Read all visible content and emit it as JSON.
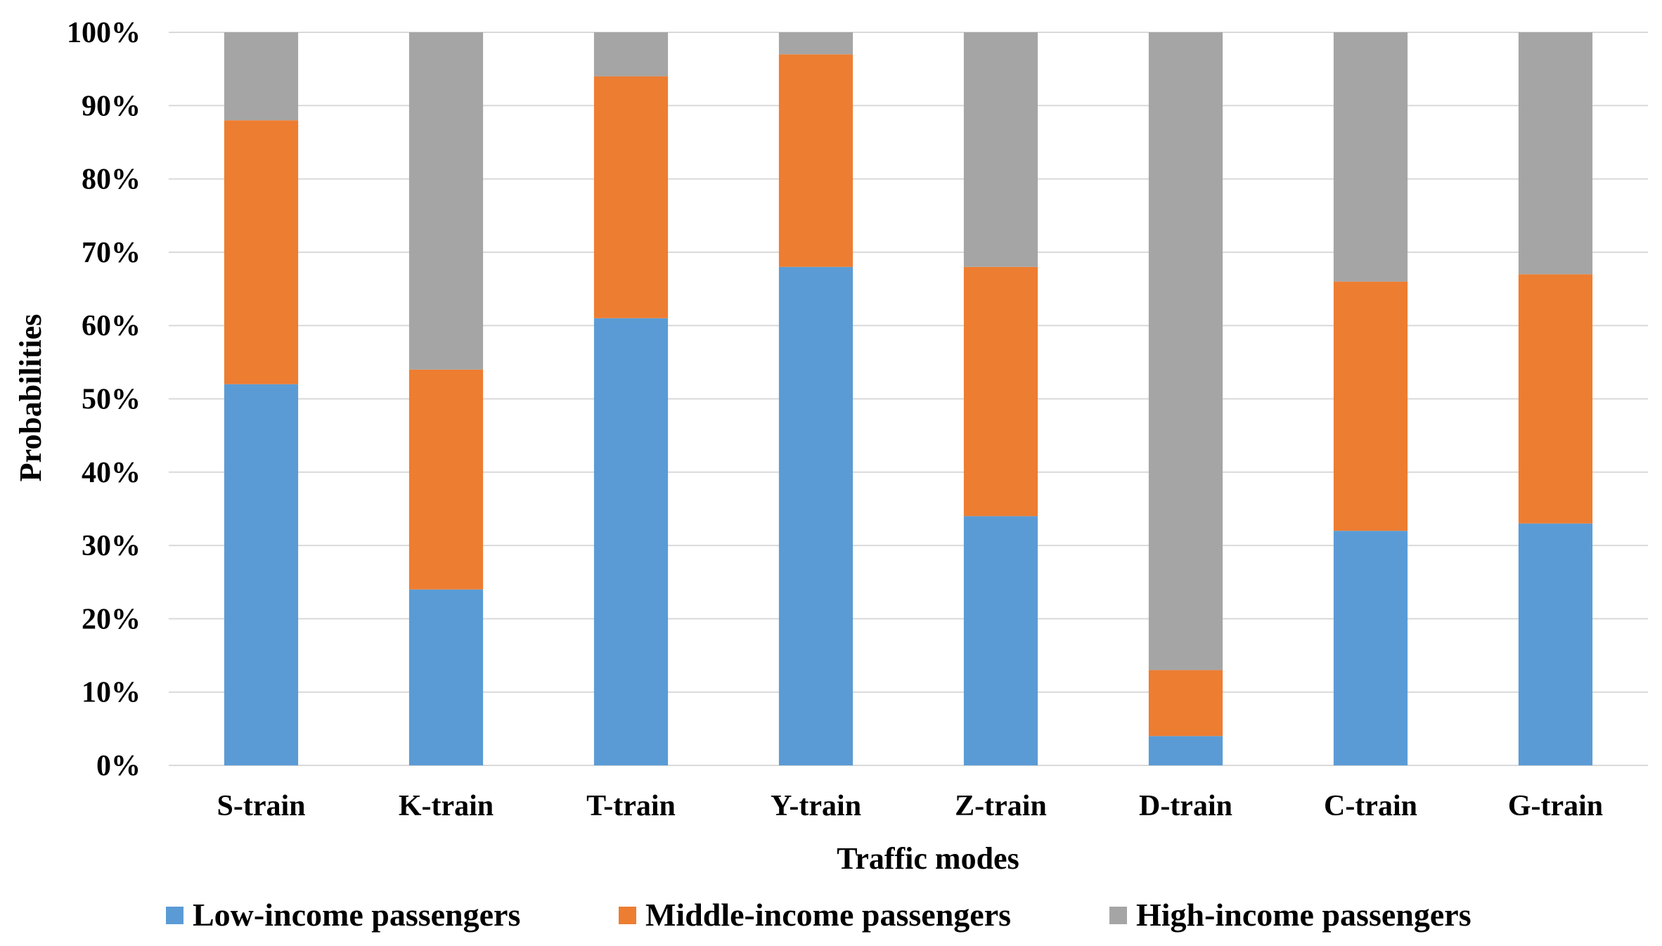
{
  "chart_data": {
    "type": "bar",
    "stacked": true,
    "percent_stacked": true,
    "categories": [
      "S-train",
      "K-train",
      "T-train",
      "Y-train",
      "Z-train",
      "D-train",
      "C-train",
      "G-train"
    ],
    "series": [
      {
        "name": "Low-income passengers",
        "color": "#5b9bd5",
        "values": [
          52,
          24,
          61,
          68,
          34,
          4,
          32,
          33
        ]
      },
      {
        "name": "Middle-income passengers",
        "color": "#ed7d31",
        "values": [
          36,
          30,
          33,
          29,
          34,
          9,
          34,
          34
        ]
      },
      {
        "name": "High-income passengers",
        "color": "#a5a5a5",
        "values": [
          12,
          46,
          6,
          3,
          32,
          87,
          34,
          33
        ]
      }
    ],
    "y_ticks": [
      "0%",
      "10%",
      "20%",
      "30%",
      "40%",
      "50%",
      "60%",
      "70%",
      "80%",
      "90%",
      "100%"
    ],
    "ylim": [
      0,
      100
    ],
    "xlabel": "Traffic modes",
    "ylabel": "Probabilities",
    "grid": true,
    "legend_position": "bottom"
  }
}
